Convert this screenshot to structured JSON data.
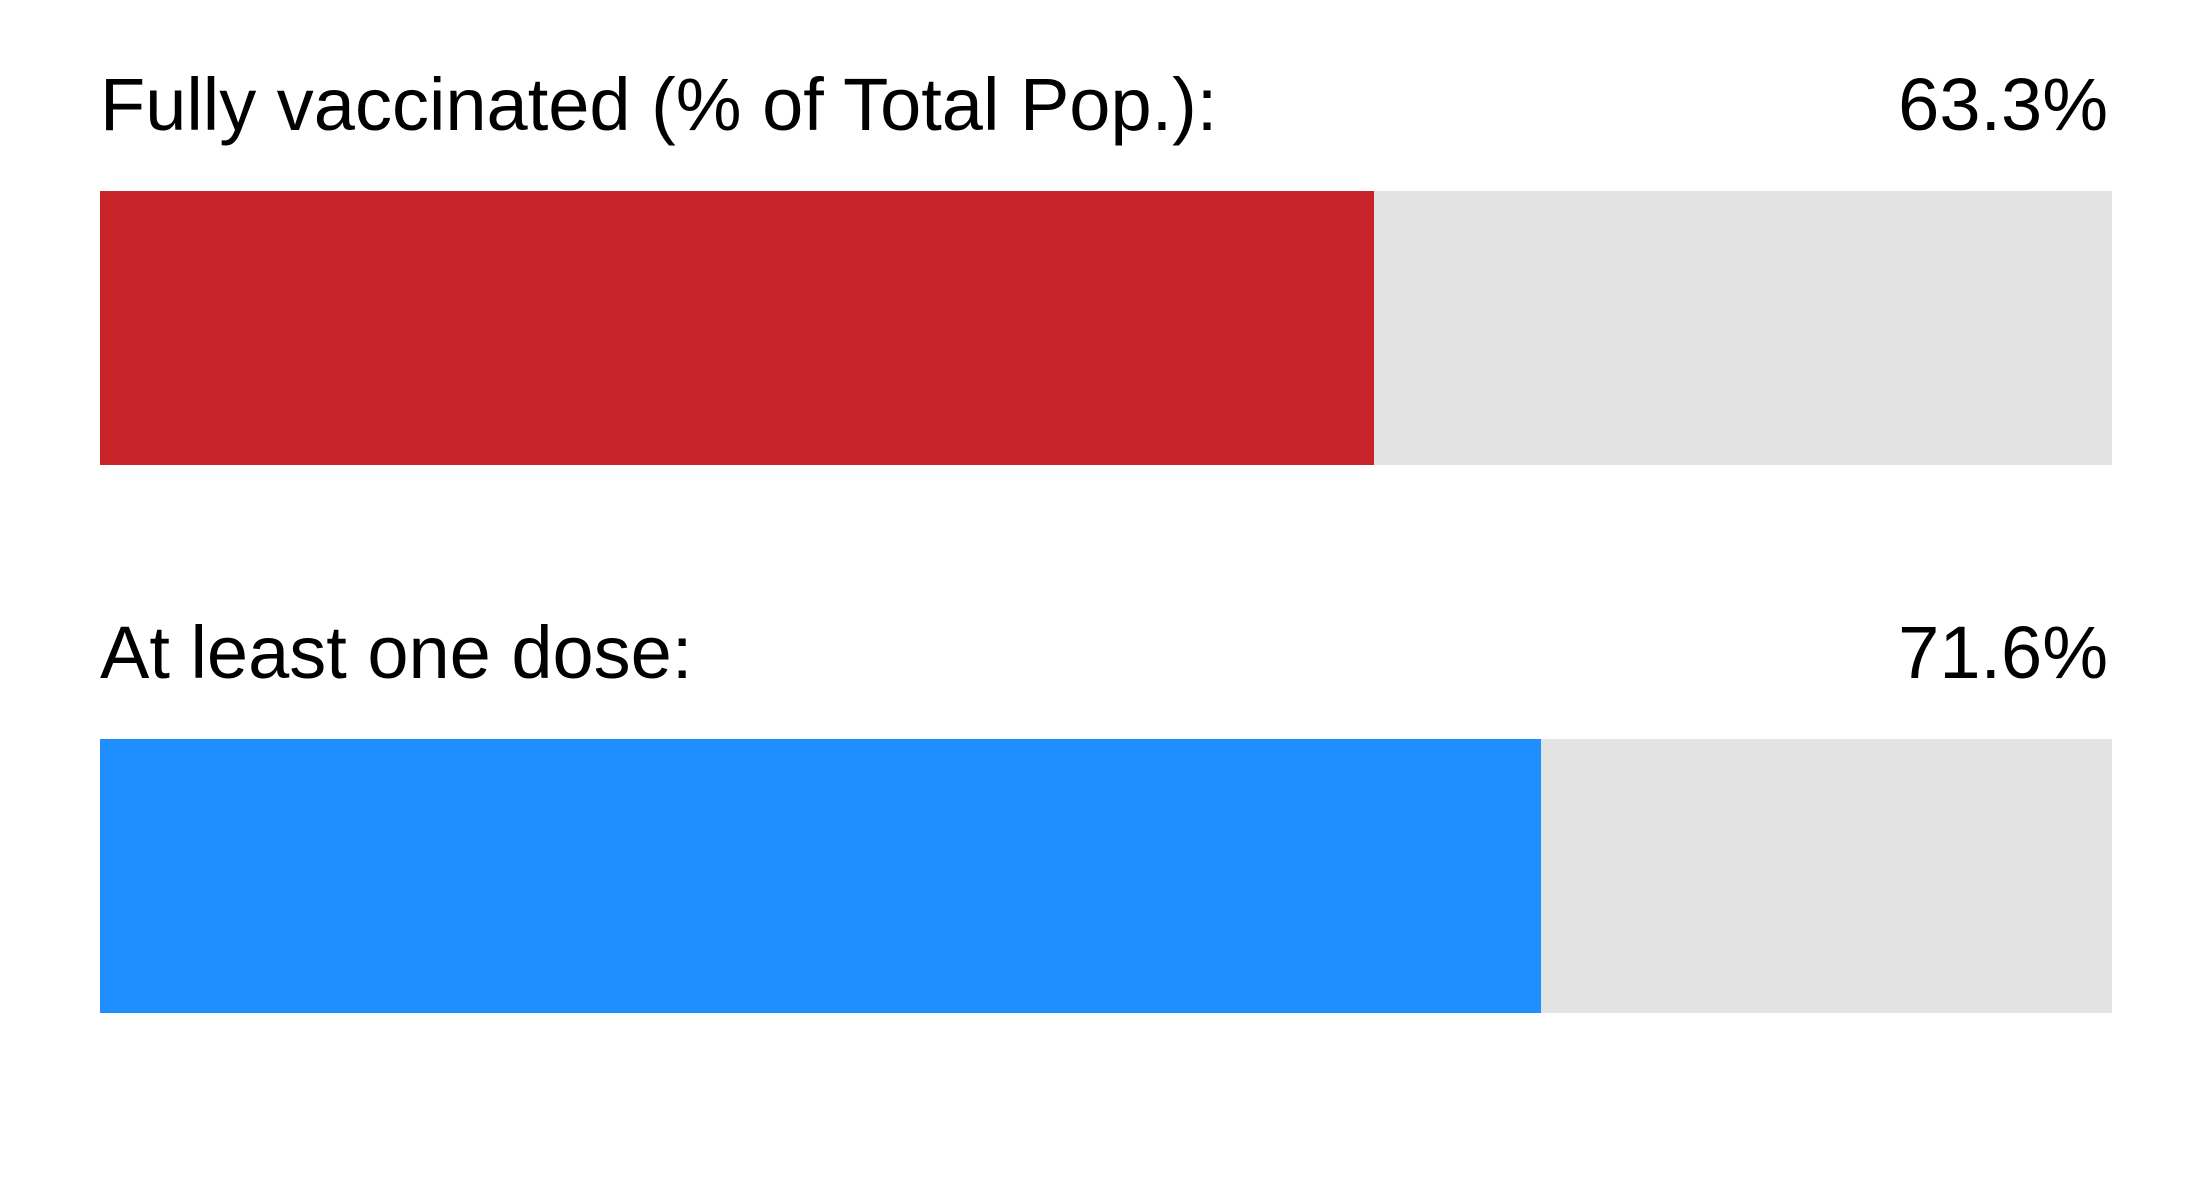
{
  "chart_data": {
    "type": "bar",
    "orientation": "horizontal",
    "scale_max": 100,
    "track_color": "#e3e3e3",
    "items": [
      {
        "label": "Fully vaccinated (% of Total Pop.):",
        "value": 63.3,
        "value_label": "63.3%",
        "color": "#c8242a"
      },
      {
        "label": "At least one dose:",
        "value": 71.6,
        "value_label": "71.6%",
        "color": "#1f8fff"
      }
    ]
  }
}
